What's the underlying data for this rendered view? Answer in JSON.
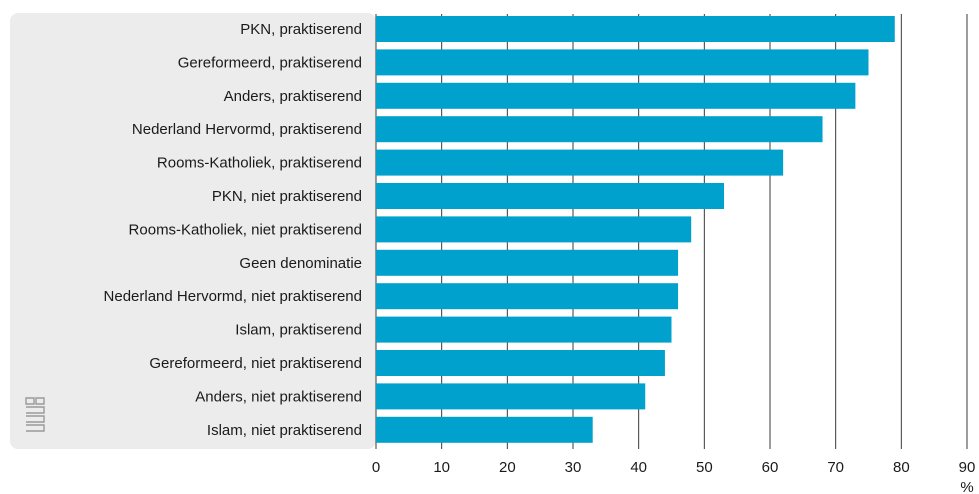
{
  "chart_data": {
    "type": "bar",
    "orientation": "horizontal",
    "categories": [
      "PKN, praktiserend",
      "Gereformeerd, praktiserend",
      "Anders, praktiserend",
      "Nederland Hervormd, praktiserend",
      "Rooms-Katholiek, praktiserend",
      "PKN, niet praktiserend",
      "Rooms-Katholiek, niet praktiserend",
      "Geen denominatie",
      "Nederland Hervormd, niet praktiserend",
      "Islam, praktiserend",
      "Gereformeerd, niet praktiserend",
      "Anders, niet praktiserend",
      "Islam, niet praktiserend"
    ],
    "values": [
      79,
      75,
      73,
      68,
      62,
      53,
      48,
      46,
      46,
      45,
      44,
      41,
      33
    ],
    "xlim": [
      0,
      90
    ],
    "xticks": [
      0,
      10,
      20,
      30,
      40,
      50,
      60,
      70,
      80,
      90
    ],
    "xunit": "%",
    "grid": true,
    "bar_color": "#00a1cd",
    "label_panel_color": "#ececec",
    "logo": "cbs-logo"
  }
}
